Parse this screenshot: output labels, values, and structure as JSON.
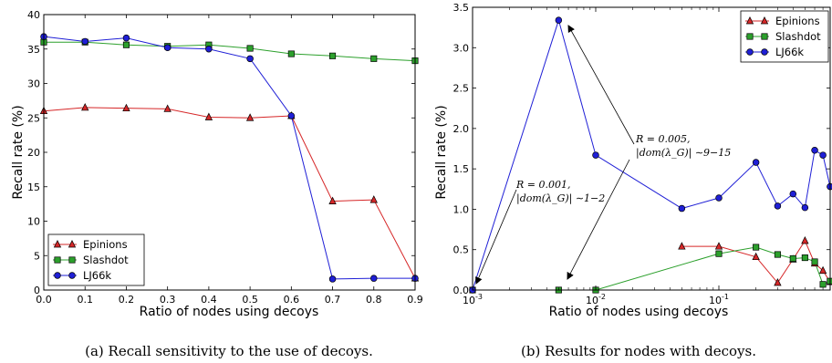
{
  "chart_data": [
    {
      "type": "line",
      "xlabel": "Ratio of nodes using decoys",
      "ylabel": "Recall rate (%)",
      "caption": "(a) Recall sensitivity to the use of decoys.",
      "xlim": [
        0,
        0.9
      ],
      "ylim": [
        0,
        40
      ],
      "xticks": [
        "0.0",
        "0.1",
        "0.2",
        "0.3",
        "0.4",
        "0.5",
        "0.6",
        "0.7",
        "0.8",
        "0.9"
      ],
      "yticks": [
        "0",
        "5",
        "10",
        "15",
        "20",
        "25",
        "30",
        "35",
        "40"
      ],
      "legend_position": "lower-left",
      "series": [
        {
          "name": "Epinions",
          "color": "#d62728",
          "marker": "triangle",
          "x": [
            0,
            0.1,
            0.2,
            0.3,
            0.4,
            0.5,
            0.6,
            0.7,
            0.8,
            0.9
          ],
          "y": [
            26.0,
            26.5,
            26.4,
            26.3,
            25.1,
            25.0,
            25.3,
            12.9,
            13.1,
            1.7
          ]
        },
        {
          "name": "Slashdot",
          "color": "#2ca02c",
          "marker": "square",
          "x": [
            0,
            0.1,
            0.2,
            0.3,
            0.4,
            0.5,
            0.6,
            0.7,
            0.8,
            0.9
          ],
          "y": [
            36.0,
            36.0,
            35.6,
            35.4,
            35.6,
            35.1,
            34.3,
            34.0,
            33.6,
            33.3
          ]
        },
        {
          "name": "LJ66k",
          "color": "#1f1fd6",
          "marker": "circle",
          "x": [
            0,
            0.1,
            0.2,
            0.3,
            0.4,
            0.5,
            0.6,
            0.7,
            0.8,
            0.9
          ],
          "y": [
            36.8,
            36.1,
            36.6,
            35.2,
            35.0,
            33.6,
            25.3,
            1.6,
            1.7,
            1.7
          ]
        }
      ]
    },
    {
      "type": "line",
      "xlabel": "Ratio of nodes using decoys",
      "ylabel": "Recall rate (%)",
      "caption": "(b) Results for nodes with decoys.",
      "xscale": "log",
      "xlim": [
        0.001,
        0.8
      ],
      "ylim": [
        0,
        3.5
      ],
      "xticks": [
        {
          "base": "10",
          "exp": "-3"
        },
        {
          "base": "10",
          "exp": "-2"
        },
        {
          "base": "10",
          "exp": "-1"
        }
      ],
      "yticks": [
        "0.0",
        "0.5",
        "1.0",
        "1.5",
        "2.0",
        "2.5",
        "3.0",
        "3.5"
      ],
      "legend_position": "top-right",
      "series": [
        {
          "name": "Epinions",
          "color": "#d62728",
          "marker": "triangle",
          "x": [
            0.05,
            0.1,
            0.2,
            0.3,
            0.4,
            0.5,
            0.6,
            0.7,
            0.8
          ],
          "y": [
            0.54,
            0.54,
            0.41,
            0.09,
            0.38,
            0.61,
            0.33,
            0.24,
            0.1
          ]
        },
        {
          "name": "Slashdot",
          "color": "#2ca02c",
          "marker": "square",
          "x": [
            0.001,
            0.005,
            0.01,
            0.1,
            0.2,
            0.3,
            0.4,
            0.5,
            0.6,
            0.7,
            0.8
          ],
          "y": [
            0,
            0,
            0,
            0.45,
            0.53,
            0.44,
            0.39,
            0.4,
            0.35,
            0.07,
            0.11
          ]
        },
        {
          "name": "LJ66k",
          "color": "#1f1fd6",
          "marker": "circle",
          "x": [
            0.001,
            0.005,
            0.01,
            0.05,
            0.1,
            0.2,
            0.3,
            0.4,
            0.5,
            0.6,
            0.7,
            0.8
          ],
          "y": [
            0,
            3.34,
            1.67,
            1.01,
            1.14,
            1.58,
            1.04,
            1.19,
            1.02,
            1.73,
            1.67,
            1.28
          ]
        }
      ],
      "annotations": [
        {
          "line1": "R = 0.001,",
          "line2": "|dom(λ_G)| ∼1−2"
        },
        {
          "line1": "R = 0.005,",
          "line2": "|dom(λ_G)| ∼9−15"
        }
      ]
    }
  ]
}
